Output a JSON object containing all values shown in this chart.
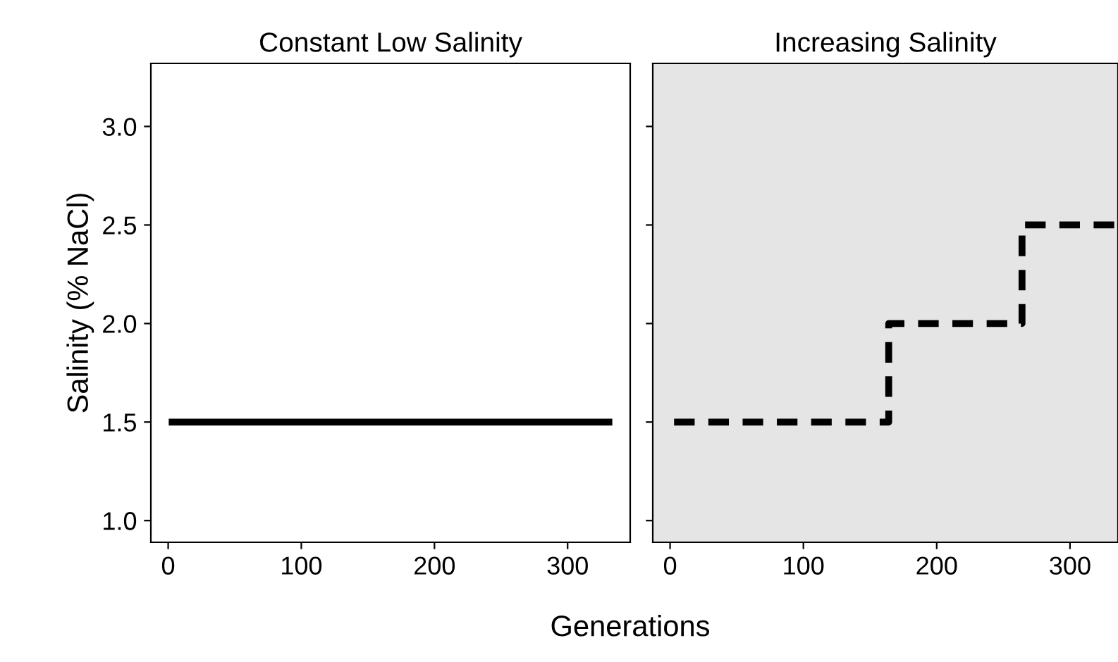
{
  "chart_data": [
    {
      "type": "line",
      "title": "Constant Low Salinity",
      "xlabel": "Generations",
      "ylabel": "Salinity (% NaCl)",
      "series": [
        {
          "color": "#000000",
          "x": [
            3,
            331
          ],
          "values": [
            1.5,
            1.5
          ],
          "line_style": "solid"
        }
      ],
      "xlim": [
        -13,
        347
      ],
      "xticks": [
        0,
        100,
        200,
        300
      ],
      "ylim": [
        0.89,
        3.32
      ],
      "yticks": [
        {
          "value": 1,
          "label": "1.0"
        },
        {
          "value": 1.5,
          "label": "1.5"
        },
        {
          "value": 2,
          "label": "2.0"
        },
        {
          "value": 2.5,
          "label": "2.5"
        },
        {
          "value": 3,
          "label": "3.0"
        }
      ],
      "grid": false,
      "legend": false
    },
    {
      "type": "step",
      "title": "Increasing Salinity",
      "series": [
        {
          "color": "#000000",
          "x": [
            3,
            164,
            264,
            336
          ],
          "values": [
            1.5,
            2.0,
            2.5,
            2.5
          ],
          "line_style": "dashed"
        }
      ],
      "xlim": [
        -13,
        336
      ],
      "xticks": [
        0,
        100,
        200,
        300
      ],
      "ylim": [
        0.89,
        3.32
      ],
      "yticks": [
        {
          "value": 1,
          "label": null
        },
        {
          "value": 1.5,
          "label": null
        },
        {
          "value": 2,
          "label": null
        },
        {
          "value": 2.5,
          "label": null
        },
        {
          "value": 3,
          "label": null
        }
      ],
      "bands": [
        {
          "axis": "y",
          "from": 0.89,
          "to": 3.32,
          "color": "#e5e5e5"
        }
      ],
      "tick_labels": "x",
      "grid": false,
      "legend": false
    }
  ]
}
